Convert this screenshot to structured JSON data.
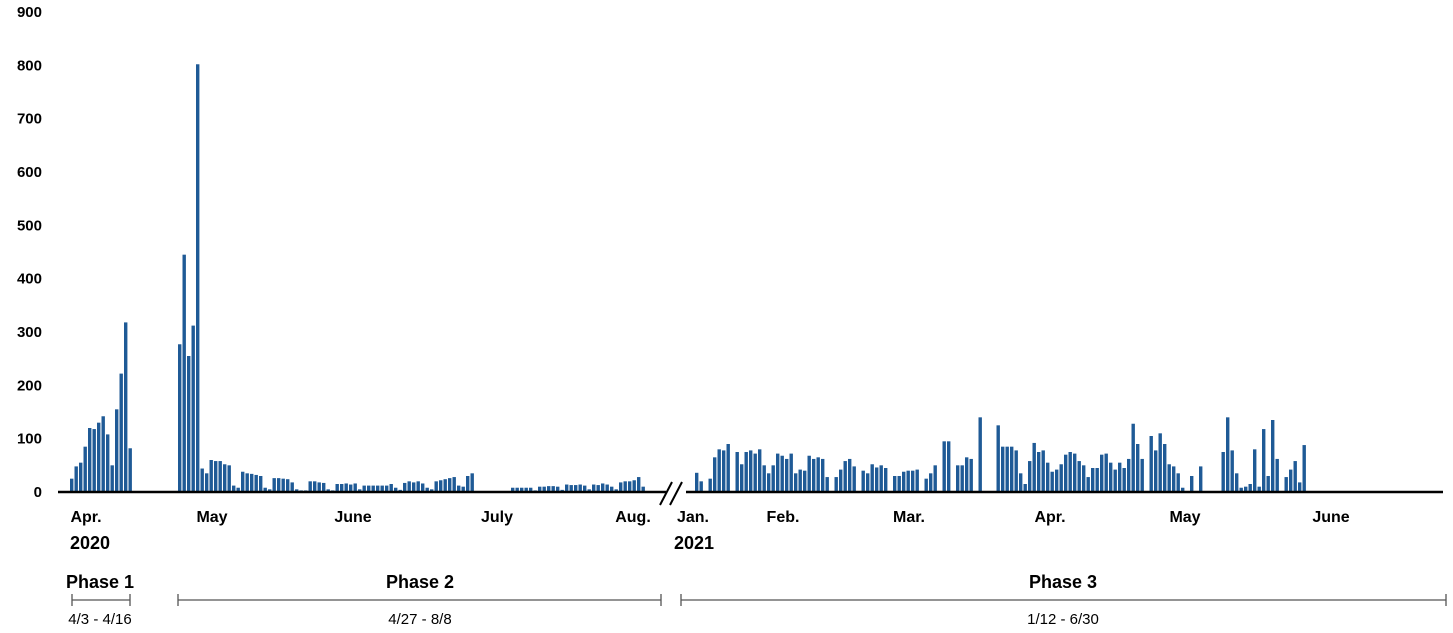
{
  "colors": {
    "bar": "#1f5a96",
    "axis": "#000000",
    "bracket": "#555555"
  },
  "chart_data": {
    "type": "bar",
    "y_ticks": [
      "0",
      "100",
      "200",
      "300",
      "400",
      "500",
      "600",
      "700",
      "800",
      "900"
    ],
    "ylim": [
      0,
      900
    ],
    "grid": false,
    "axis_break": "//",
    "segments": [
      {
        "name": "2020",
        "month_labels": [
          "Apr.",
          "May",
          "June",
          "July",
          "Aug."
        ],
        "year_label": "2020",
        "phases": [
          {
            "label": "Phase 1",
            "range": "4/3 - 4/16"
          },
          {
            "label": "Phase 2",
            "range": "4/27 - 8/8"
          }
        ],
        "phase1_values": [
          25,
          48,
          55,
          85,
          120,
          118,
          130,
          142,
          108,
          50,
          155,
          222,
          318,
          82
        ],
        "phase2_values": [
          277,
          445,
          255,
          312,
          802,
          44,
          35,
          60,
          58,
          58,
          52,
          50,
          12,
          8,
          38,
          35,
          34,
          32,
          30,
          8,
          5,
          26,
          26,
          25,
          24,
          18,
          5,
          3,
          3,
          20,
          20,
          18,
          17,
          5,
          3,
          15,
          15,
          16,
          14,
          16,
          5,
          12,
          12,
          12,
          12,
          12,
          12,
          15,
          8,
          4,
          17,
          20,
          18,
          20,
          16,
          8,
          5,
          20,
          22,
          24,
          26,
          28,
          12,
          10,
          30,
          35,
          0,
          0,
          0,
          0,
          0,
          0,
          0,
          0,
          8,
          8,
          8,
          8,
          8,
          3,
          10,
          10,
          11,
          11,
          10,
          4,
          14,
          13,
          13,
          14,
          12,
          5,
          14,
          13,
          16,
          14,
          10,
          5,
          18,
          20,
          20,
          22,
          28,
          10
        ]
      },
      {
        "name": "2021",
        "month_labels": [
          "Jan.",
          "Feb.",
          "Mar.",
          "Apr.",
          "May",
          "June"
        ],
        "year_label": "2021",
        "phases": [
          {
            "label": "Phase 3",
            "range": "1/12 - 6/30"
          }
        ],
        "phase3_values": [
          36,
          20,
          0,
          25,
          65,
          80,
          78,
          90,
          0,
          75,
          52,
          75,
          78,
          72,
          80,
          50,
          35,
          50,
          72,
          68,
          62,
          72,
          35,
          42,
          40,
          68,
          62,
          65,
          62,
          28,
          0,
          28,
          42,
          58,
          62,
          48,
          0,
          40,
          35,
          52,
          46,
          50,
          45,
          0,
          30,
          30,
          38,
          40,
          40,
          42,
          0,
          25,
          35,
          50,
          0,
          95,
          95,
          0,
          50,
          50,
          65,
          62,
          0,
          140,
          0,
          0,
          0,
          125,
          85,
          85,
          85,
          78,
          35,
          15,
          58,
          92,
          75,
          78,
          55,
          38,
          42,
          52,
          70,
          75,
          72,
          58,
          50,
          28,
          45,
          45,
          70,
          72,
          55,
          42,
          55,
          45,
          62,
          128,
          90,
          62,
          0,
          105,
          78,
          110,
          90,
          52,
          48,
          35,
          8,
          0,
          30,
          0,
          48,
          0,
          0,
          0,
          0,
          75,
          140,
          78,
          35,
          8,
          10,
          15,
          80,
          10,
          118,
          30,
          135,
          62,
          0,
          28,
          42,
          58,
          18,
          88,
          0,
          0,
          0,
          0,
          0,
          0,
          0,
          0,
          0,
          0,
          0,
          0,
          0,
          0,
          0,
          0,
          0,
          0,
          0,
          0,
          0,
          0,
          0,
          0,
          0,
          0,
          0,
          0,
          0,
          0
        ]
      }
    ]
  }
}
